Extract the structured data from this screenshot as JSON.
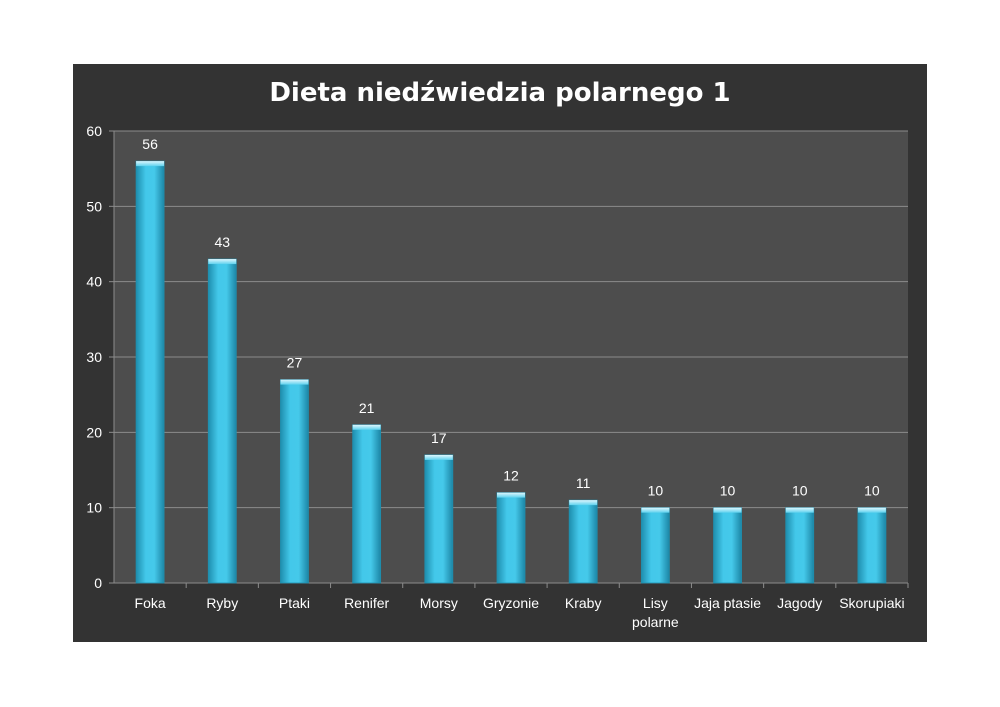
{
  "chart_data": {
    "type": "bar",
    "title": "Dieta niedźwiedzia polarnego 1",
    "categories": [
      "Foka",
      "Ryby",
      "Ptaki",
      "Renifer",
      "Morsy",
      "Gryzonie",
      "Kraby",
      "Lisy polarne",
      "Jaja ptasie",
      "Jagody",
      "Skorupiaki"
    ],
    "values": [
      56,
      43,
      27,
      21,
      17,
      12,
      11,
      10,
      10,
      10,
      10
    ],
    "xlabel": "",
    "ylabel": "",
    "ylim": [
      0,
      60
    ],
    "yticks": [
      0,
      10,
      20,
      30,
      40,
      50,
      60
    ],
    "grid": true,
    "legend": "none",
    "data_labels": true,
    "colors": {
      "frame_background": "#333333",
      "plot_background": "#4d4d4d",
      "bar": "#3fc0e2",
      "bar_edge": "#1f8fae",
      "gridline": "#8c8c8c",
      "text": "#ffffff"
    }
  }
}
